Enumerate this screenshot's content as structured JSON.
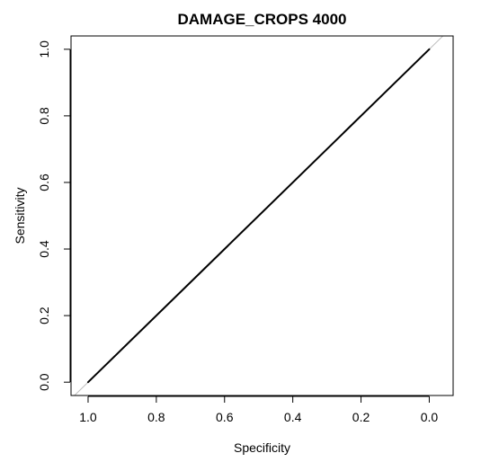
{
  "chart_data": {
    "type": "line",
    "title": "DAMAGE_CROPS  4000",
    "xlabel": "Specificity",
    "ylabel": "Sensitivity",
    "x_axis": {
      "reversed": true,
      "range": [
        1.05,
        -0.07
      ],
      "ticks": [
        1.0,
        0.8,
        0.6,
        0.4,
        0.2,
        0.0
      ],
      "tick_labels": [
        "1.0",
        "0.8",
        "0.6",
        "0.4",
        "0.2",
        "0.0"
      ]
    },
    "y_axis": {
      "range": [
        -0.04,
        1.04
      ],
      "ticks": [
        0.0,
        0.2,
        0.4,
        0.6,
        0.8,
        1.0
      ],
      "tick_labels": [
        "0.0",
        "0.2",
        "0.4",
        "0.6",
        "0.8",
        "1.0"
      ]
    },
    "grid": false,
    "legend": "none",
    "series": [
      {
        "x": [
          1.0,
          0.0
        ],
        "y": [
          0.0,
          1.0
        ],
        "color": "#000000"
      }
    ],
    "reference_line": {
      "kind": "diagonal",
      "description_of": "y = 1 - x",
      "color": "#bebebe"
    }
  }
}
